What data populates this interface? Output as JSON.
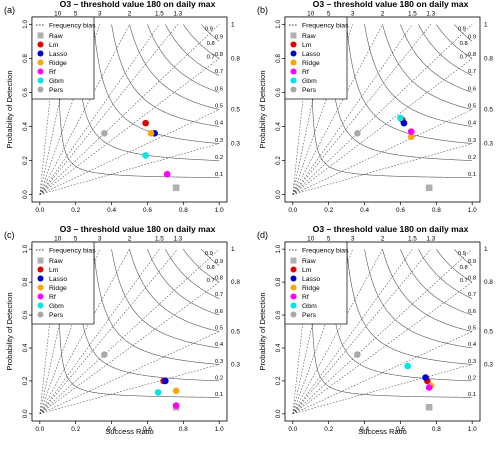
{
  "figure": {
    "x_axis_label": "Success Ratio",
    "y_axis_label": "Probability of Detection"
  },
  "chart_data": [
    {
      "type": "scatter",
      "panel_label": "(a)",
      "title": "O3 – threshold value 180 on daily max",
      "xlabel": "Success Ratio",
      "ylabel": "Probability of Detection",
      "xlim": [
        0,
        1
      ],
      "ylim": [
        0,
        1
      ],
      "x_ticks": [
        "0.0",
        "0.2",
        "0.4",
        "0.6",
        "0.8",
        "1.0"
      ],
      "y_ticks": [
        "0.0",
        "0.2",
        "0.4",
        "0.6",
        "0.8",
        "1.0"
      ],
      "frequency_bias_lines": [
        "10",
        "5",
        "3",
        "2",
        "1.5",
        "1.3"
      ],
      "csi_lines": [
        "0.9",
        "0.8",
        "0.7",
        "0.6",
        "0.5",
        "0.4",
        "0.3",
        "0.2",
        "0.1"
      ],
      "legend_title": "Frequency bias",
      "legend_placement": "top-left",
      "series": [
        {
          "name": "Raw",
          "marker": "square",
          "color": "#B0B0B0",
          "x": 0.76,
          "y": 0.04
        },
        {
          "name": "Lm",
          "marker": "circle",
          "color": "#E00000",
          "x": 0.59,
          "y": 0.42
        },
        {
          "name": "Lasso",
          "marker": "circle",
          "color": "#0000CC",
          "x": 0.64,
          "y": 0.36
        },
        {
          "name": "Ridge",
          "marker": "circle",
          "color": "#FFA500",
          "x": 0.62,
          "y": 0.36
        },
        {
          "name": "Rf",
          "marker": "circle",
          "color": "#FF00FF",
          "x": 0.71,
          "y": 0.12
        },
        {
          "name": "Gbm",
          "marker": "circle",
          "color": "#00E5E5",
          "x": 0.59,
          "y": 0.23
        },
        {
          "name": "Pers",
          "marker": "circle",
          "color": "#A9A9A9",
          "x": 0.36,
          "y": 0.36
        }
      ]
    },
    {
      "type": "scatter",
      "panel_label": "(b)",
      "title": "O3 – threshold value 180 on daily max",
      "xlabel": "Success Ratio",
      "ylabel": "Probability of Detection",
      "xlim": [
        0,
        1
      ],
      "ylim": [
        0,
        1
      ],
      "x_ticks": [
        "0.0",
        "0.2",
        "0.4",
        "0.6",
        "0.8",
        "1.0"
      ],
      "y_ticks": [
        "0.0",
        "0.2",
        "0.4",
        "0.6",
        "0.8",
        "1.0"
      ],
      "frequency_bias_lines": [
        "10",
        "5",
        "3",
        "2",
        "1.5",
        "1.3"
      ],
      "csi_lines": [
        "0.9",
        "0.8",
        "0.7",
        "0.6",
        "0.5",
        "0.4",
        "0.3",
        "0.2",
        "0.1"
      ],
      "legend_title": "Frequency bias",
      "legend_placement": "top-left",
      "series": [
        {
          "name": "Raw",
          "marker": "square",
          "color": "#B0B0B0",
          "x": 0.76,
          "y": 0.04
        },
        {
          "name": "Lm",
          "marker": "circle",
          "color": "#E00000",
          "x": 0.61,
          "y": 0.44
        },
        {
          "name": "Lasso",
          "marker": "circle",
          "color": "#0000CC",
          "x": 0.62,
          "y": 0.42
        },
        {
          "name": "Ridge",
          "marker": "circle",
          "color": "#FFA500",
          "x": 0.66,
          "y": 0.34
        },
        {
          "name": "Rf",
          "marker": "circle",
          "color": "#FF00FF",
          "x": 0.66,
          "y": 0.37
        },
        {
          "name": "Gbm",
          "marker": "circle",
          "color": "#00E5E5",
          "x": 0.6,
          "y": 0.45
        },
        {
          "name": "Pers",
          "marker": "circle",
          "color": "#A9A9A9",
          "x": 0.36,
          "y": 0.36
        }
      ]
    },
    {
      "type": "scatter",
      "panel_label": "(c)",
      "title": "O3 – threshold value 180 on daily max",
      "xlabel": "Success Ratio",
      "ylabel": "Probability of Detection",
      "xlim": [
        0,
        1
      ],
      "ylim": [
        0,
        1
      ],
      "x_ticks": [
        "0.0",
        "0.2",
        "0.4",
        "0.6",
        "0.8",
        "1.0"
      ],
      "y_ticks": [
        "0.0",
        "0.2",
        "0.4",
        "0.6",
        "0.8",
        "1.0"
      ],
      "frequency_bias_lines": [
        "10",
        "5",
        "3",
        "2",
        "1.5",
        "1.3"
      ],
      "csi_lines": [
        "0.9",
        "0.8",
        "0.7",
        "0.6",
        "0.5",
        "0.4",
        "0.3",
        "0.2",
        "0.1"
      ],
      "legend_title": "Frequency bias",
      "legend_placement": "top-left",
      "series": [
        {
          "name": "Raw",
          "marker": "square",
          "color": "#B0B0B0",
          "x": 0.76,
          "y": 0.04
        },
        {
          "name": "Lm",
          "marker": "circle",
          "color": "#E00000",
          "x": 0.69,
          "y": 0.2
        },
        {
          "name": "Lasso",
          "marker": "circle",
          "color": "#0000CC",
          "x": 0.7,
          "y": 0.2
        },
        {
          "name": "Ridge",
          "marker": "circle",
          "color": "#FFA500",
          "x": 0.76,
          "y": 0.14
        },
        {
          "name": "Rf",
          "marker": "circle",
          "color": "#FF00FF",
          "x": 0.76,
          "y": 0.05
        },
        {
          "name": "Gbm",
          "marker": "circle",
          "color": "#00E5E5",
          "x": 0.66,
          "y": 0.13
        },
        {
          "name": "Pers",
          "marker": "circle",
          "color": "#A9A9A9",
          "x": 0.36,
          "y": 0.36
        }
      ]
    },
    {
      "type": "scatter",
      "panel_label": "(d)",
      "title": "O3 – threshold value 180 on daily max",
      "xlabel": "Success Ratio",
      "ylabel": "Probability of Detection",
      "xlim": [
        0,
        1
      ],
      "ylim": [
        0,
        1
      ],
      "x_ticks": [
        "0.0",
        "0.2",
        "0.4",
        "0.6",
        "0.8",
        "1.0"
      ],
      "y_ticks": [
        "0.0",
        "0.2",
        "0.4",
        "0.6",
        "0.8",
        "1.0"
      ],
      "frequency_bias_lines": [
        "10",
        "5",
        "3",
        "2",
        "1.5",
        "1.3"
      ],
      "csi_lines": [
        "0.9",
        "0.8",
        "0.7",
        "0.6",
        "0.5",
        "0.4",
        "0.3",
        "0.2",
        "0.1"
      ],
      "legend_title": "Frequency bias",
      "legend_placement": "top-left",
      "series": [
        {
          "name": "Raw",
          "marker": "square",
          "color": "#B0B0B0",
          "x": 0.76,
          "y": 0.04
        },
        {
          "name": "Lm",
          "marker": "circle",
          "color": "#E00000",
          "x": 0.75,
          "y": 0.2
        },
        {
          "name": "Lasso",
          "marker": "circle",
          "color": "#0000CC",
          "x": 0.74,
          "y": 0.22
        },
        {
          "name": "Ridge",
          "marker": "circle",
          "color": "#FFA500",
          "x": 0.77,
          "y": 0.17
        },
        {
          "name": "Rf",
          "marker": "circle",
          "color": "#FF00FF",
          "x": 0.76,
          "y": 0.16
        },
        {
          "name": "Gbm",
          "marker": "circle",
          "color": "#00E5E5",
          "x": 0.64,
          "y": 0.29
        },
        {
          "name": "Pers",
          "marker": "circle",
          "color": "#A9A9A9",
          "x": 0.36,
          "y": 0.36
        }
      ]
    }
  ]
}
